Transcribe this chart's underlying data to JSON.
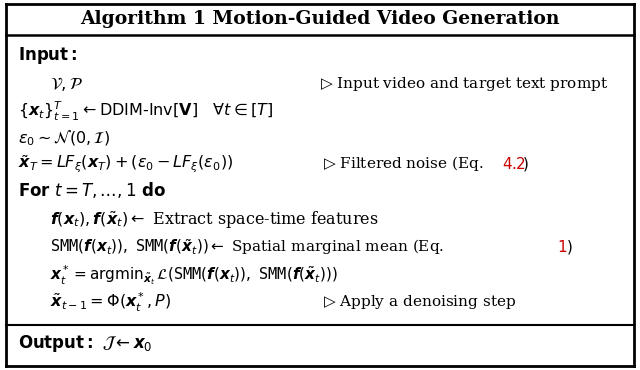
{
  "title": "Algorithm 1 Motion-Guided Video Generation",
  "background_color": "#ffffff",
  "border_color": "#000000",
  "fig_width": 6.4,
  "fig_height": 3.7
}
